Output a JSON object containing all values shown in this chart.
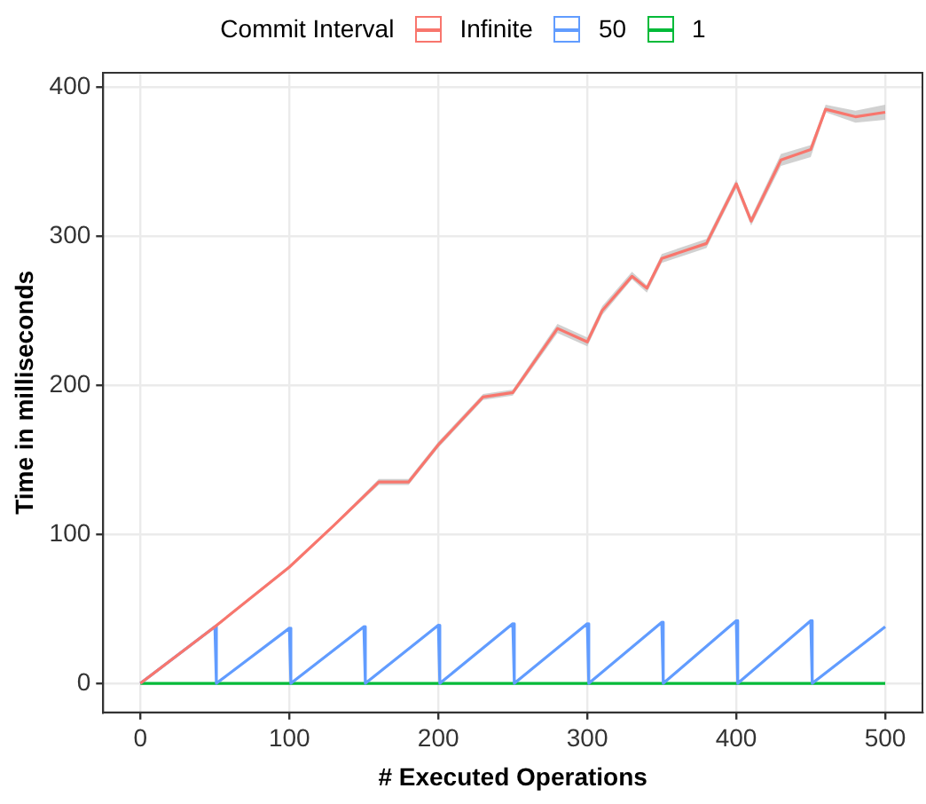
{
  "chart_data": {
    "type": "line",
    "xlabel": "# Executed Operations",
    "ylabel": "Time in milliseconds",
    "legend_title": "Commit Interval",
    "legend": "top",
    "grid": true,
    "xlim": [
      -25,
      525
    ],
    "ylim": [
      -19.5,
      409.5
    ],
    "xticks": [
      0,
      100,
      200,
      300,
      400,
      500
    ],
    "yticks": [
      0,
      100,
      200,
      300,
      400
    ],
    "series": [
      {
        "name": "Infinite",
        "color": "#f8766d",
        "x": [
          0,
          50,
          100,
          130,
          160,
          180,
          200,
          230,
          250,
          280,
          300,
          310,
          330,
          340,
          350,
          380,
          400,
          410,
          430,
          450,
          460,
          480,
          500
        ],
        "values": [
          0,
          38,
          78,
          106,
          135,
          135,
          160,
          192,
          195,
          238,
          229,
          250,
          273,
          265,
          285,
          295,
          335,
          310,
          351,
          358,
          385,
          380,
          383
        ],
        "lower": [
          0,
          37,
          77,
          105,
          133,
          133,
          158,
          190,
          193,
          235,
          226,
          247,
          271,
          262,
          282,
          292,
          332,
          307,
          347,
          353,
          383,
          376,
          378
        ],
        "upper": [
          0,
          39,
          79,
          107,
          137,
          137,
          162,
          194,
          197,
          241,
          232,
          253,
          276,
          267,
          288,
          298,
          338,
          313,
          355,
          361,
          388,
          384,
          388
        ]
      },
      {
        "name": "50",
        "color": "#619cff",
        "x": [
          0,
          50,
          51,
          100,
          101,
          150,
          151,
          200,
          201,
          250,
          251,
          300,
          301,
          350,
          351,
          400,
          401,
          450,
          451,
          500
        ],
        "values": [
          0,
          38,
          0,
          37,
          0,
          38,
          0,
          39,
          0,
          40,
          0,
          40,
          0,
          41,
          0,
          42,
          0,
          42,
          0,
          38
        ]
      },
      {
        "name": "1",
        "color": "#00ba38",
        "x": [
          0,
          500
        ],
        "values": [
          0,
          0
        ]
      }
    ]
  }
}
